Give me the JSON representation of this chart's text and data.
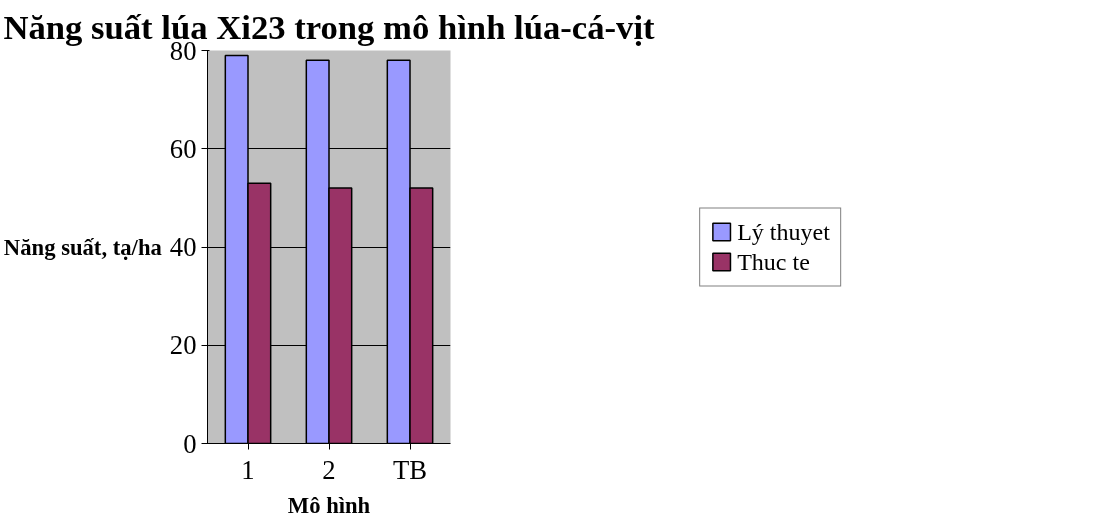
{
  "chart_data": {
    "type": "bar",
    "title": "Năng suất lúa Xi23 trong mô hình lúa-cá-vịt",
    "xlabel": "Mô hình",
    "ylabel": "Năng suất, tạ/ha",
    "categories": [
      "1",
      "2",
      "TB"
    ],
    "series": [
      {
        "name": "Lý thuyet",
        "color": "#9999ff",
        "values": [
          79,
          78,
          78
        ]
      },
      {
        "name": "Thuc te",
        "color": "#993366",
        "values": [
          53,
          52,
          52
        ]
      }
    ],
    "ylim": [
      0,
      80
    ],
    "yticks": [
      0,
      20,
      40,
      60,
      80
    ],
    "grid": "y",
    "legend": "right"
  }
}
